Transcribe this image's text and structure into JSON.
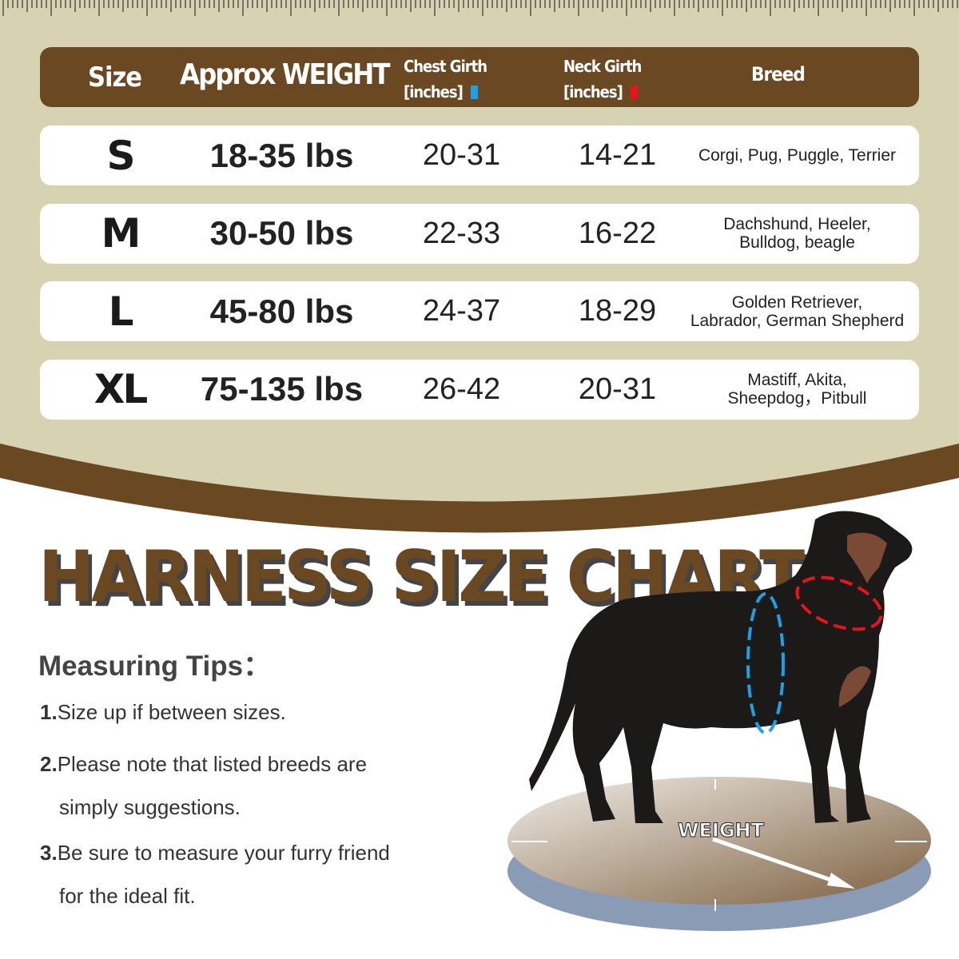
{
  "colors": {
    "beige": "#d6d2b2",
    "brown": "#6a4822",
    "chest_marker": "#1ea0e6",
    "neck_marker": "#e8141a"
  },
  "header": {
    "size": "Size",
    "weight": "Approx WEIGHT",
    "chest": [
      "Chest Girth",
      "[inches]"
    ],
    "neck": [
      "Neck Girth",
      "[inches]"
    ],
    "breed": "Breed"
  },
  "rows": [
    {
      "size": "S",
      "weight": "18-35 lbs",
      "chest": "20-31",
      "neck": "14-21",
      "breed": [
        "Corgi, Pug, Puggle, Terrier"
      ]
    },
    {
      "size": "M",
      "weight": "30-50 lbs",
      "chest": "22-33",
      "neck": "16-22",
      "breed": [
        "Dachshund, Heeler,",
        "Bulldog, beagle"
      ]
    },
    {
      "size": "L",
      "weight": "45-80 lbs",
      "chest": "24-37",
      "neck": "18-29",
      "breed": [
        "Golden Retriever,",
        "Labrador, German Shepherd"
      ]
    },
    {
      "size": "XL",
      "weight": "75-135 lbs",
      "chest": "26-42",
      "neck": "20-31",
      "breed": [
        "Mastiff, Akita,",
        "Sheepdog，Pitbull"
      ]
    }
  ],
  "title": "HARNESS SIZE CHART",
  "tips": {
    "heading": "Measuring Tips：",
    "items": [
      {
        "num": "1.",
        "lines": [
          "Size up if between sizes."
        ]
      },
      {
        "num": "2.",
        "lines": [
          "Please note that listed breeds are",
          "simply suggestions."
        ]
      },
      {
        "num": "3.",
        "lines": [
          "Be sure to measure your furry friend",
          "for the ideal fit."
        ]
      }
    ]
  },
  "scale_label": "WEIGHT",
  "icons": {
    "dog": "dog-silhouette",
    "scale": "weight-scale",
    "ruler": "ruler-ticks"
  }
}
